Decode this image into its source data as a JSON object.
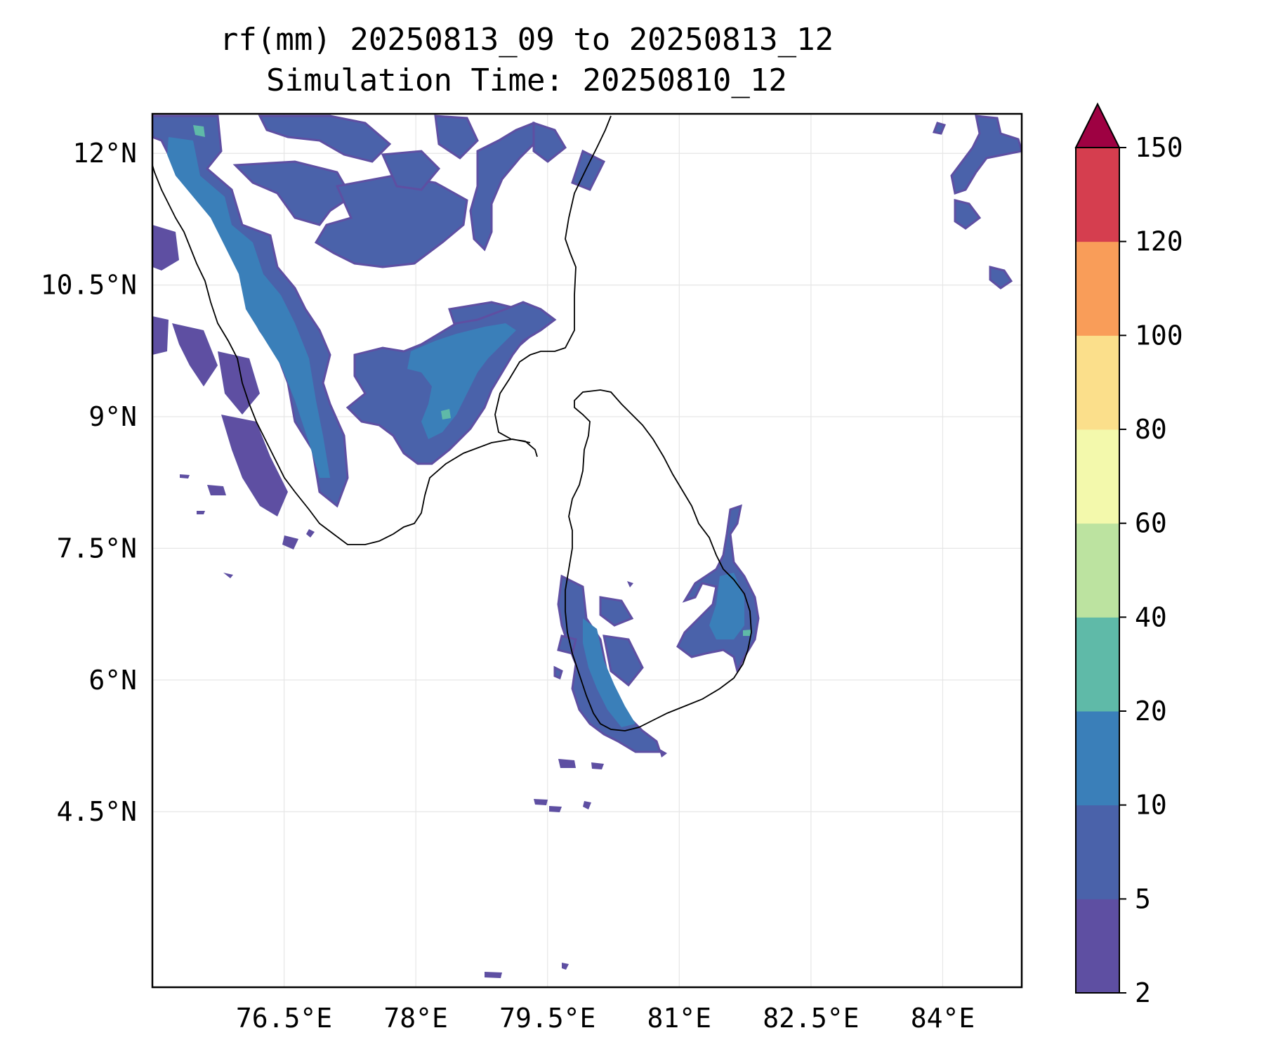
{
  "title": {
    "line1": "rf(mm) 20250813_09 to 20250813_12",
    "line2": "Simulation Time: 20250810_12"
  },
  "map": {
    "extent": {
      "lon_min": 75.0,
      "lon_max": 84.9,
      "lat_min": 2.5,
      "lat_max": 12.45
    },
    "x_ticks": [
      {
        "value": 76.5,
        "label": "76.5°E"
      },
      {
        "value": 78.0,
        "label": "78°E"
      },
      {
        "value": 79.5,
        "label": "79.5°E"
      },
      {
        "value": 81.0,
        "label": "81°E"
      },
      {
        "value": 82.5,
        "label": "82.5°E"
      },
      {
        "value": 84.0,
        "label": "84°E"
      }
    ],
    "y_ticks": [
      {
        "value": 12.0,
        "label": "12°N"
      },
      {
        "value": 10.5,
        "label": "10.5°N"
      },
      {
        "value": 9.0,
        "label": "9°N"
      },
      {
        "value": 7.5,
        "label": "7.5°N"
      },
      {
        "value": 6.0,
        "label": "6°N"
      },
      {
        "value": 4.5,
        "label": "4.5°N"
      }
    ],
    "gridlines": true
  },
  "colorbar": {
    "levels": [
      "2",
      "5",
      "10",
      "20",
      "40",
      "60",
      "80",
      "100",
      "120",
      "150"
    ],
    "colors": [
      "#5e4fa2",
      "#4a62aa",
      "#3a7fb9",
      "#5fbaa8",
      "#bce3a0",
      "#f3f9ac",
      "#fbdf8b",
      "#f99d59",
      "#d53e4f"
    ],
    "extend_color": "#9e0142",
    "extend": "max"
  },
  "colors": {
    "rain_2_5": "#5e4fa2",
    "rain_5_10": "#4a62aa",
    "rain_10_20": "#3a7fb9",
    "rain_20_40": "#5fbaa8",
    "coastline": "#000000"
  }
}
